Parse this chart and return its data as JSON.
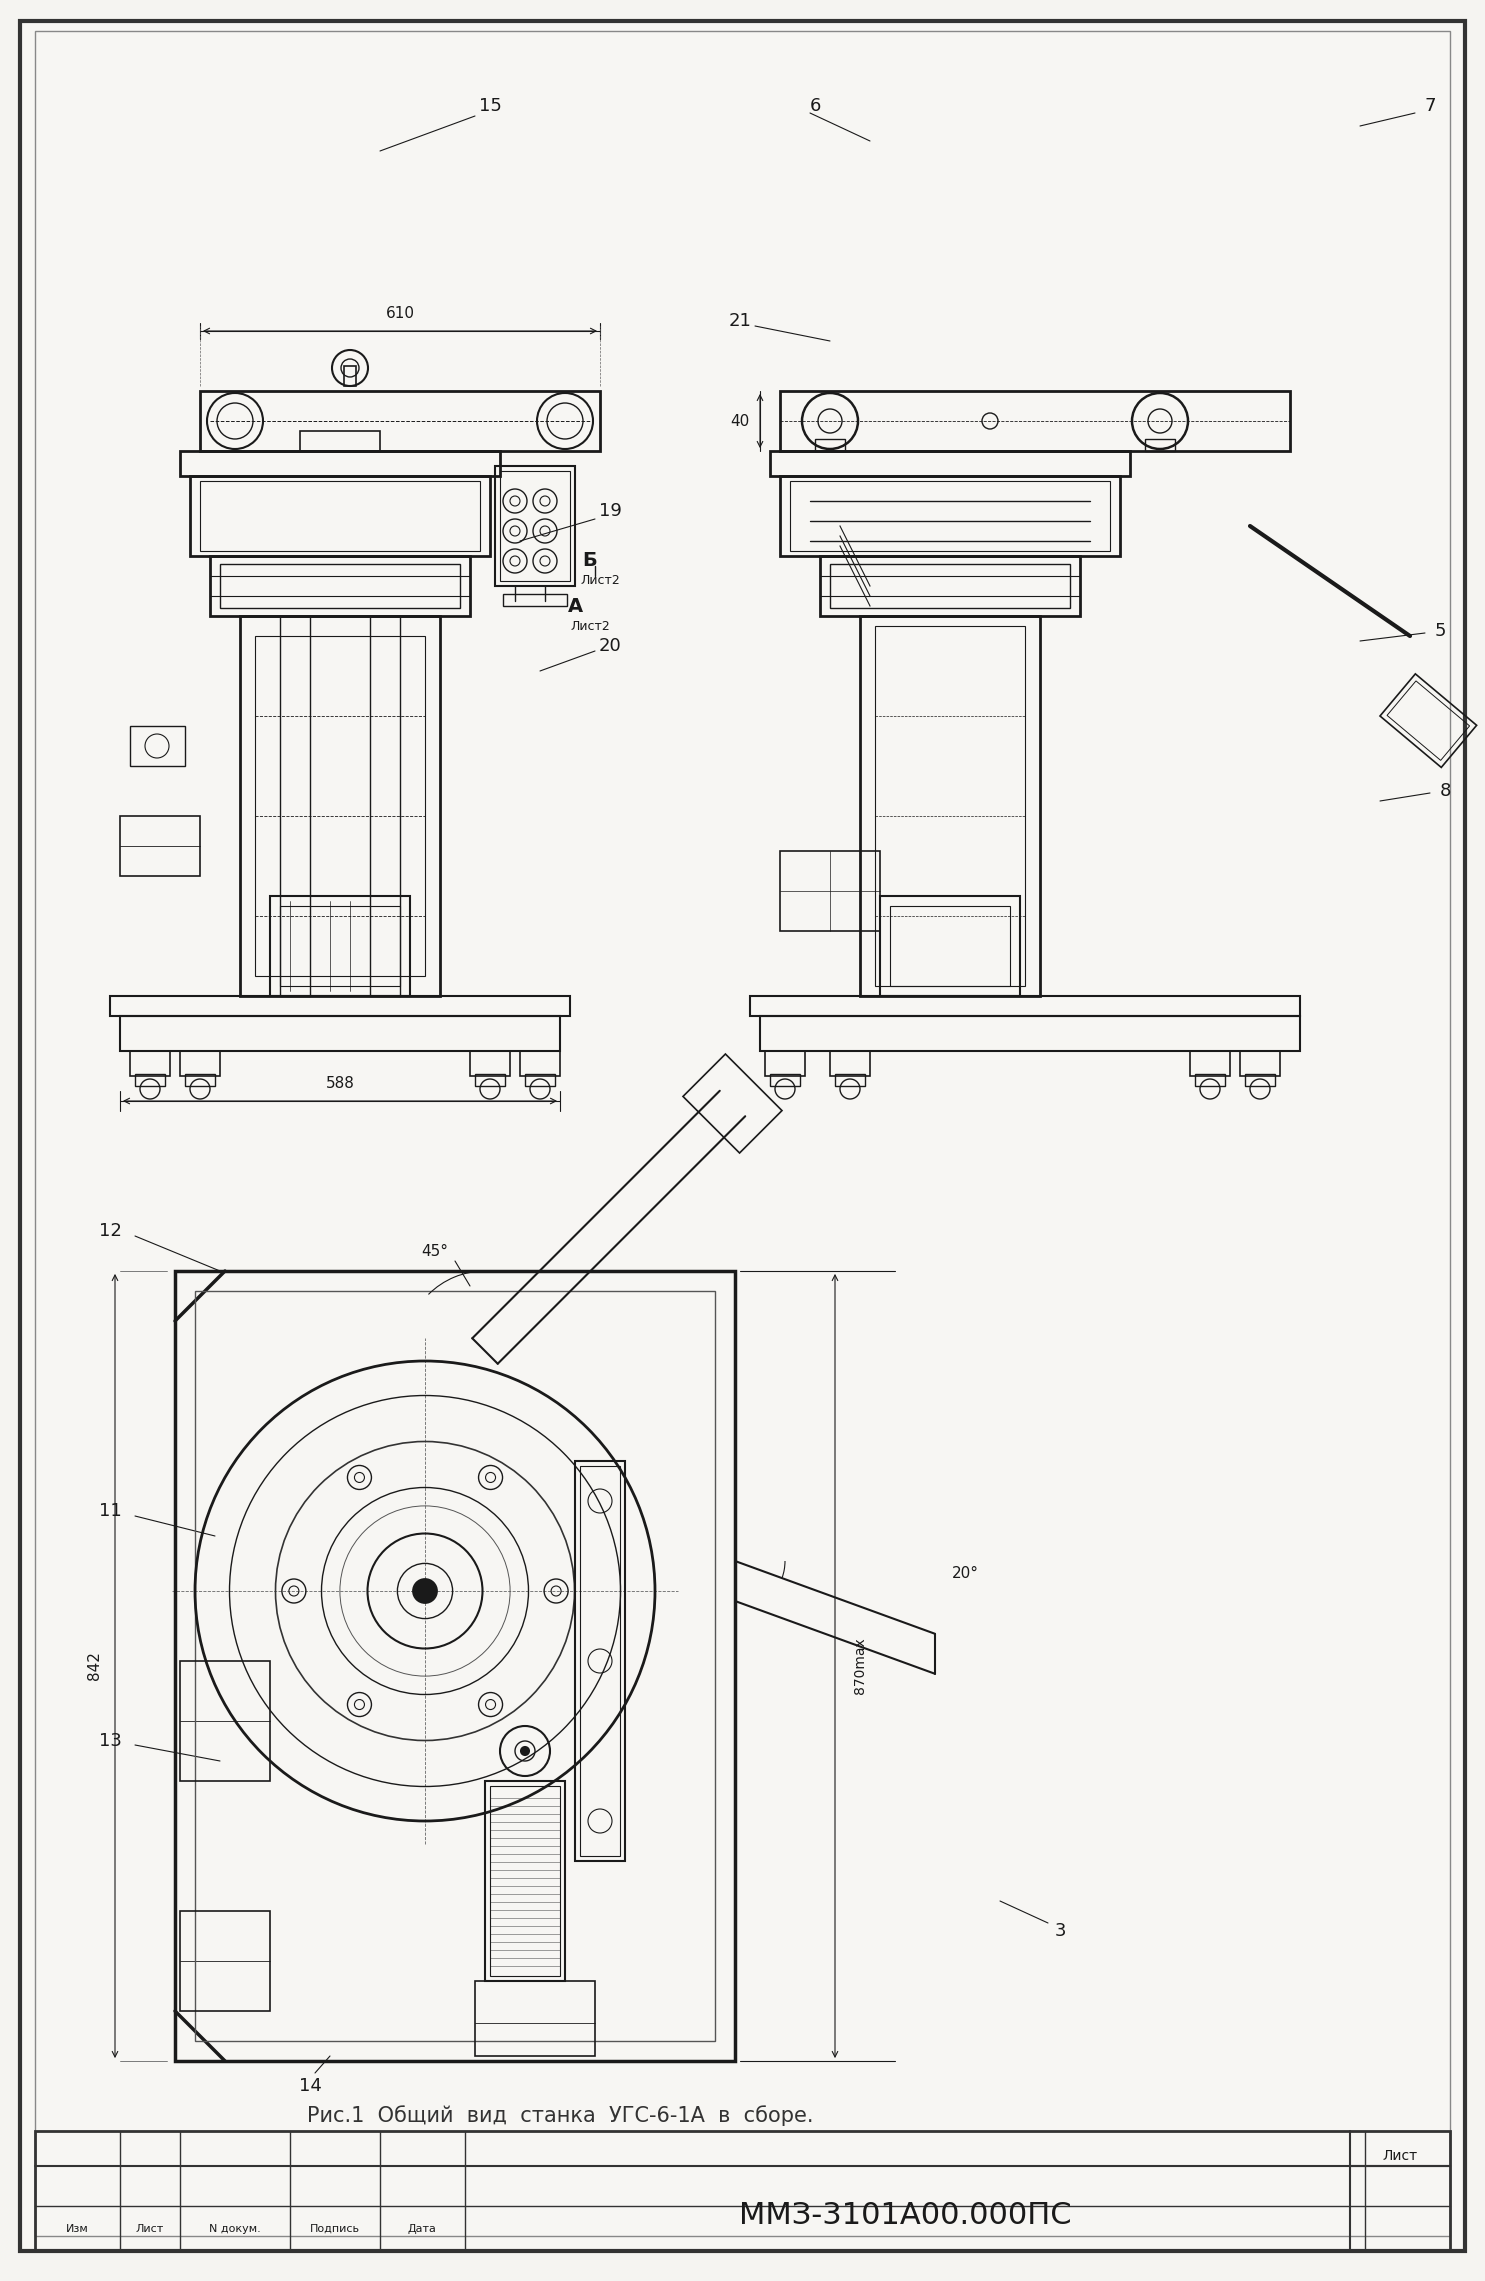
{
  "bg_color": "#f5f4f1",
  "paper_color": "#f7f6f3",
  "line_color": "#1a1a1a",
  "thin_color": "#2a2a2a",
  "border_color": "#333333",
  "title_text": "Рис.1  Общий  вид  станка  УГС-6-1А  в  сборе.",
  "doc_number": "ММЗ-3101А00.000ПС",
  "caption_list": "Лист",
  "footer_labels": [
    "Изм",
    "Лист",
    "N докум.",
    "Подпись",
    "Дата"
  ]
}
